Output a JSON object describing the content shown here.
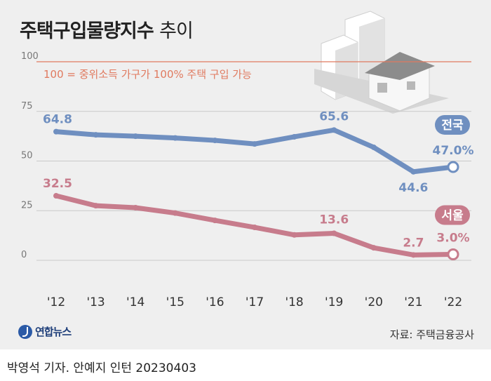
{
  "title": {
    "main": "주택구입물량지수",
    "sub": "추이"
  },
  "credit": "박영석 기자. 안예지 인턴  20230403",
  "logo_text": "연합뉴스",
  "source": "자료: 주택금융공사",
  "colors": {
    "national": "#6f8fc0",
    "seoul": "#c77c8c",
    "reference": "#e07a5f",
    "background": "#efefef"
  },
  "chart_data": {
    "type": "line",
    "x": [
      "'12",
      "'13",
      "'14",
      "'15",
      "'16",
      "'17",
      "'18",
      "'19",
      "'20",
      "'21",
      "'22"
    ],
    "ylim": [
      0,
      100
    ],
    "yticks": [
      0,
      25,
      50,
      75,
      100
    ],
    "reference_line": {
      "value": 100,
      "label": "100 = 중위소득 가구가 100% 주택 구입 가능"
    },
    "series": [
      {
        "name": "전국",
        "values": [
          64.8,
          63.2,
          62.5,
          61.6,
          60.4,
          58.6,
          62.2,
          65.6,
          56.9,
          44.6,
          47.0
        ]
      },
      {
        "name": "서울",
        "values": [
          32.5,
          27.5,
          26.5,
          23.8,
          20.1,
          16.6,
          12.8,
          13.6,
          6.3,
          2.7,
          3.0
        ]
      }
    ],
    "data_labels": {
      "national": [
        {
          "index": 0,
          "text": "64.8"
        },
        {
          "index": 7,
          "text": "65.6"
        },
        {
          "index": 9,
          "text": "44.6"
        },
        {
          "index": 10,
          "text": "47.0%"
        }
      ],
      "seoul": [
        {
          "index": 0,
          "text": "32.5"
        },
        {
          "index": 7,
          "text": "13.6"
        },
        {
          "index": 9,
          "text": "2.7"
        },
        {
          "index": 10,
          "text": "3.0%"
        }
      ]
    },
    "grid": true,
    "legend": "inline-right"
  }
}
